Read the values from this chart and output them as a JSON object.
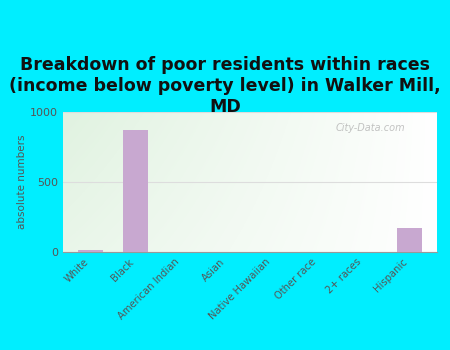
{
  "title": "Breakdown of poor residents within races\n(income below poverty level) in Walker Mill,\nMD",
  "categories": [
    "White",
    "Black",
    "American Indian",
    "Asian",
    "Native Hawaiian",
    "Other race",
    "2+ races",
    "Hispanic"
  ],
  "values": [
    15,
    870,
    0,
    0,
    0,
    0,
    0,
    175
  ],
  "bar_color": "#c8a8d0",
  "ylabel": "absolute numbers",
  "ylim": [
    0,
    1000
  ],
  "yticks": [
    0,
    500,
    1000
  ],
  "outer_bg": "#00eeff",
  "title_fontsize": 12.5,
  "title_color": "#111111",
  "watermark": "City-Data.com",
  "tick_color": "#555555",
  "ylabel_color": "#555555",
  "grid_color": "#dddddd",
  "bg_colors": [
    "#e0f0d0",
    "#f5faee"
  ]
}
